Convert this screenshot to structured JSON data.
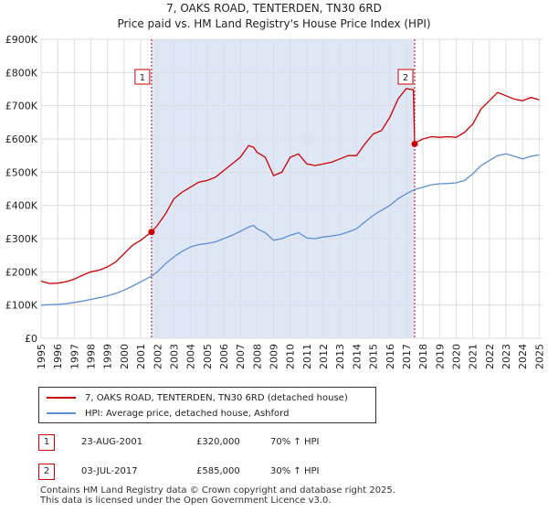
{
  "title": {
    "line1": "7, OAKS ROAD, TENTERDEN, TN30 6RD",
    "line2": "Price paid vs. HM Land Registry's House Price Index (HPI)"
  },
  "colors": {
    "property": "#cc0000",
    "hpi": "#5b8fd4",
    "shade": "#dfe7f7",
    "grid": "#dddddd",
    "marker_border": "#cc0000"
  },
  "chart_data": {
    "type": "line",
    "title": "7, OAKS ROAD, TENTERDEN, TN30 6RD",
    "subtitle": "Price paid vs. HM Land Registry's House Price Index (HPI)",
    "xlabel": "",
    "ylabel": "",
    "xlim": [
      1995,
      2025.2
    ],
    "ylim": [
      0,
      900000
    ],
    "y_ticks": [
      0,
      100000,
      200000,
      300000,
      400000,
      500000,
      600000,
      700000,
      800000,
      900000
    ],
    "y_tick_labels": [
      "£0",
      "£100K",
      "£200K",
      "£300K",
      "£400K",
      "£500K",
      "£600K",
      "£700K",
      "£800K",
      "£900K"
    ],
    "x_ticks": [
      1995,
      1996,
      1997,
      1998,
      1999,
      2000,
      2001,
      2002,
      2003,
      2004,
      2005,
      2006,
      2007,
      2008,
      2009,
      2010,
      2011,
      2012,
      2013,
      2014,
      2015,
      2016,
      2017,
      2018,
      2019,
      2020,
      2021,
      2022,
      2023,
      2024,
      2025
    ],
    "grid": true,
    "shaded_region": [
      2001.65,
      2017.5
    ],
    "series": [
      {
        "name": "7, OAKS ROAD, TENTERDEN, TN30 6RD (detached house)",
        "points": [
          [
            1995.0,
            172000
          ],
          [
            1995.5,
            165000
          ],
          [
            1996.0,
            166000
          ],
          [
            1996.5,
            170000
          ],
          [
            1997.0,
            178000
          ],
          [
            1997.5,
            190000
          ],
          [
            1998.0,
            200000
          ],
          [
            1998.5,
            205000
          ],
          [
            1999.0,
            215000
          ],
          [
            1999.5,
            230000
          ],
          [
            2000.0,
            255000
          ],
          [
            2000.5,
            280000
          ],
          [
            2001.0,
            295000
          ],
          [
            2001.65,
            320000
          ],
          [
            2002.0,
            340000
          ],
          [
            2002.5,
            375000
          ],
          [
            2003.0,
            420000
          ],
          [
            2003.5,
            440000
          ],
          [
            2004.0,
            455000
          ],
          [
            2004.5,
            470000
          ],
          [
            2005.0,
            475000
          ],
          [
            2005.5,
            485000
          ],
          [
            2006.0,
            505000
          ],
          [
            2006.5,
            525000
          ],
          [
            2007.0,
            545000
          ],
          [
            2007.5,
            580000
          ],
          [
            2007.8,
            575000
          ],
          [
            2008.0,
            560000
          ],
          [
            2008.5,
            545000
          ],
          [
            2009.0,
            490000
          ],
          [
            2009.5,
            500000
          ],
          [
            2010.0,
            545000
          ],
          [
            2010.5,
            555000
          ],
          [
            2011.0,
            525000
          ],
          [
            2011.5,
            520000
          ],
          [
            2012.0,
            525000
          ],
          [
            2012.5,
            530000
          ],
          [
            2013.0,
            540000
          ],
          [
            2013.5,
            550000
          ],
          [
            2014.0,
            550000
          ],
          [
            2014.5,
            585000
          ],
          [
            2015.0,
            615000
          ],
          [
            2015.5,
            625000
          ],
          [
            2016.0,
            665000
          ],
          [
            2016.5,
            720000
          ],
          [
            2017.0,
            752000
          ],
          [
            2017.42,
            748000
          ],
          [
            2017.5,
            585000
          ],
          [
            2017.6,
            590000
          ],
          [
            2018.0,
            600000
          ],
          [
            2018.5,
            607000
          ],
          [
            2019.0,
            605000
          ],
          [
            2019.5,
            607000
          ],
          [
            2020.0,
            605000
          ],
          [
            2020.5,
            620000
          ],
          [
            2021.0,
            645000
          ],
          [
            2021.5,
            690000
          ],
          [
            2022.0,
            715000
          ],
          [
            2022.5,
            740000
          ],
          [
            2023.0,
            730000
          ],
          [
            2023.5,
            720000
          ],
          [
            2024.0,
            715000
          ],
          [
            2024.5,
            725000
          ],
          [
            2025.0,
            718000
          ]
        ]
      },
      {
        "name": "HPI: Average price, detached house, Ashford",
        "points": [
          [
            1995.0,
            100000
          ],
          [
            1995.5,
            101000
          ],
          [
            1996.0,
            102000
          ],
          [
            1996.5,
            104000
          ],
          [
            1997.0,
            108000
          ],
          [
            1997.5,
            112000
          ],
          [
            1998.0,
            117000
          ],
          [
            1998.5,
            122000
          ],
          [
            1999.0,
            128000
          ],
          [
            1999.5,
            135000
          ],
          [
            2000.0,
            145000
          ],
          [
            2000.5,
            157000
          ],
          [
            2001.0,
            170000
          ],
          [
            2001.65,
            187000
          ],
          [
            2002.0,
            200000
          ],
          [
            2002.5,
            225000
          ],
          [
            2003.0,
            245000
          ],
          [
            2003.5,
            262000
          ],
          [
            2004.0,
            275000
          ],
          [
            2004.5,
            282000
          ],
          [
            2005.0,
            285000
          ],
          [
            2005.5,
            290000
          ],
          [
            2006.0,
            300000
          ],
          [
            2006.5,
            310000
          ],
          [
            2007.0,
            322000
          ],
          [
            2007.5,
            335000
          ],
          [
            2007.8,
            340000
          ],
          [
            2008.0,
            330000
          ],
          [
            2008.5,
            318000
          ],
          [
            2009.0,
            295000
          ],
          [
            2009.5,
            300000
          ],
          [
            2010.0,
            310000
          ],
          [
            2010.5,
            318000
          ],
          [
            2011.0,
            302000
          ],
          [
            2011.5,
            300000
          ],
          [
            2012.0,
            305000
          ],
          [
            2012.5,
            308000
          ],
          [
            2013.0,
            312000
          ],
          [
            2013.5,
            320000
          ],
          [
            2014.0,
            330000
          ],
          [
            2014.5,
            350000
          ],
          [
            2015.0,
            370000
          ],
          [
            2015.5,
            385000
          ],
          [
            2016.0,
            400000
          ],
          [
            2016.5,
            420000
          ],
          [
            2017.0,
            435000
          ],
          [
            2017.5,
            448000
          ],
          [
            2018.0,
            455000
          ],
          [
            2018.5,
            462000
          ],
          [
            2019.0,
            465000
          ],
          [
            2019.5,
            466000
          ],
          [
            2020.0,
            468000
          ],
          [
            2020.5,
            475000
          ],
          [
            2021.0,
            495000
          ],
          [
            2021.5,
            520000
          ],
          [
            2022.0,
            535000
          ],
          [
            2022.5,
            550000
          ],
          [
            2023.0,
            555000
          ],
          [
            2023.5,
            548000
          ],
          [
            2024.0,
            540000
          ],
          [
            2024.5,
            548000
          ],
          [
            2025.0,
            552000
          ]
        ]
      }
    ],
    "markers": [
      {
        "label": "1",
        "x": 2001.65,
        "y": 320000
      },
      {
        "label": "2",
        "x": 2017.5,
        "y": 585000
      }
    ]
  },
  "legend": {
    "items": [
      {
        "label": "7, OAKS ROAD, TENTERDEN, TN30 6RD (detached house)",
        "color": "#cc0000"
      },
      {
        "label": "HPI: Average price, detached house, Ashford",
        "color": "#5b8fd4"
      }
    ]
  },
  "sales": [
    {
      "badge": "1",
      "date": "23-AUG-2001",
      "price": "£320,000",
      "hpi": "70% ↑ HPI"
    },
    {
      "badge": "2",
      "date": "03-JUL-2017",
      "price": "£585,000",
      "hpi": "30% ↑ HPI"
    }
  ],
  "footer": {
    "line1": "Contains HM Land Registry data © Crown copyright and database right 2025.",
    "line2": "This data is licensed under the Open Government Licence v3.0."
  }
}
